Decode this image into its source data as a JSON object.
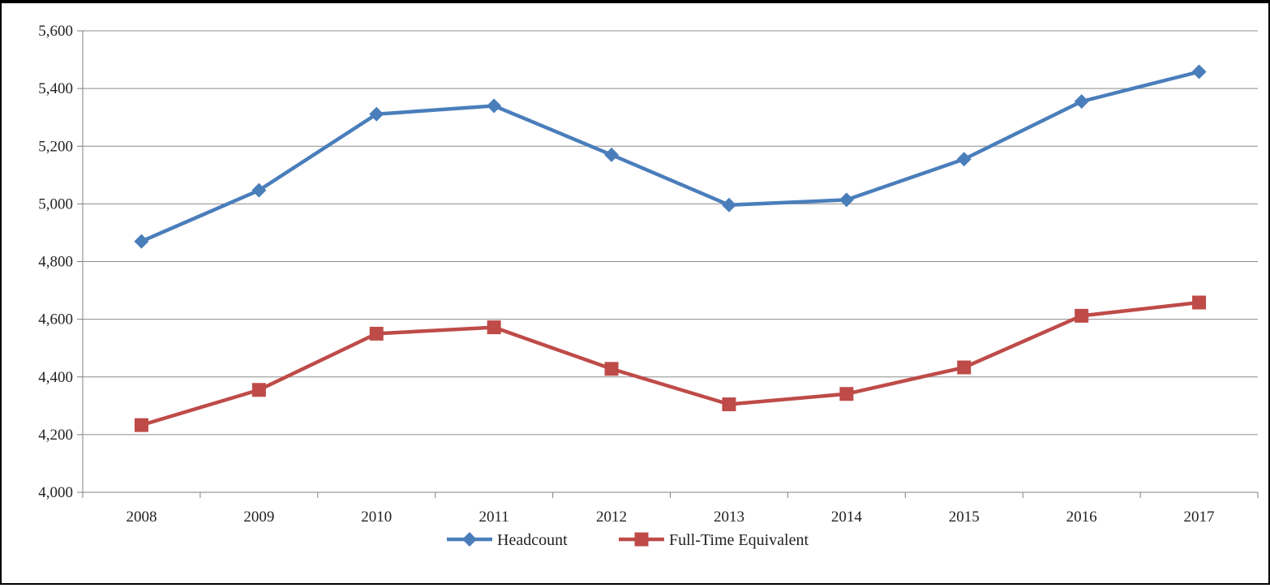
{
  "chart_data": {
    "type": "line",
    "categories": [
      "2008",
      "2009",
      "2010",
      "2011",
      "2012",
      "2013",
      "2014",
      "2015",
      "2016",
      "2017"
    ],
    "series": [
      {
        "name": "Headcount",
        "values": [
          4870,
          5047,
          5311,
          5340,
          5170,
          4996,
          5014,
          5155,
          5355,
          5458
        ],
        "color": "#4a7ebb",
        "marker": "diamond"
      },
      {
        "name": "Full-Time Equivalent",
        "values": [
          4233,
          4355,
          4550,
          4572,
          4428,
          4305,
          4341,
          4433,
          4612,
          4658
        ],
        "color": "#be4b48",
        "marker": "square"
      }
    ],
    "ylim": [
      4000,
      5600
    ],
    "yticks": [
      4000,
      4200,
      4400,
      4600,
      4800,
      5000,
      5200,
      5400,
      5600
    ],
    "ytick_labels": [
      "4,000",
      "4,200",
      "4,400",
      "4,600",
      "4,800",
      "5,000",
      "5,200",
      "5,400",
      "5,600"
    ],
    "grid": true,
    "legend": "bottom-center",
    "title": "",
    "xlabel": "",
    "ylabel": ""
  }
}
